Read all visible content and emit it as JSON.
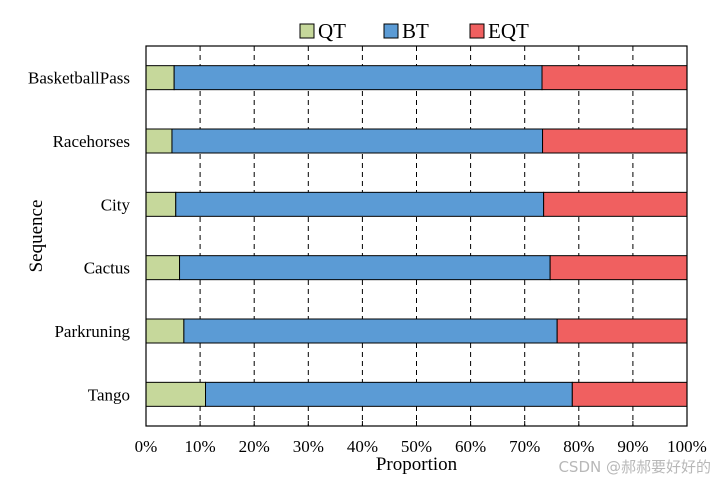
{
  "chart_data": {
    "type": "bar",
    "orientation": "horizontal",
    "stacked": true,
    "categories": [
      "BasketballPass",
      "Racehorses",
      "City",
      "Cactus",
      "Parkruning",
      "Tango"
    ],
    "series": [
      {
        "name": "QT",
        "color": "#c6d89b",
        "values": [
          5.2,
          4.8,
          5.5,
          6.2,
          7.0,
          11.0
        ]
      },
      {
        "name": "BT",
        "color": "#5b9bd5",
        "values": [
          68.0,
          68.5,
          68.0,
          68.5,
          69.0,
          67.8
        ]
      },
      {
        "name": "EQT",
        "color": "#f06060",
        "values": [
          26.8,
          26.7,
          26.5,
          25.3,
          24.0,
          21.2
        ]
      }
    ],
    "xlabel": "Proportion",
    "ylabel": "Sequence",
    "xlim": [
      0,
      100
    ],
    "xticks": [
      "0%",
      "10%",
      "20%",
      "30%",
      "40%",
      "50%",
      "60%",
      "70%",
      "80%",
      "90%",
      "100%"
    ],
    "grid": "vertical dashed",
    "legend_position": "top"
  },
  "watermark": "CSDN @郝郝要好好的"
}
